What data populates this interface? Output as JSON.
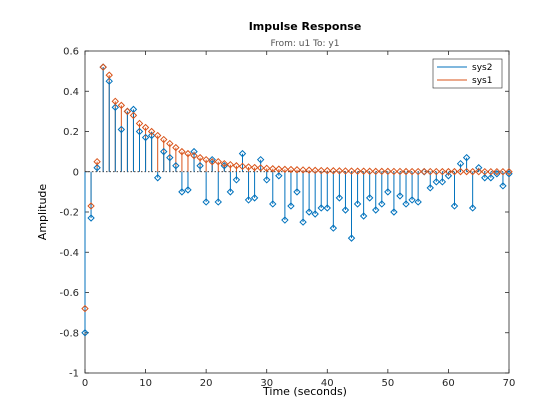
{
  "chart_data": {
    "type": "stem",
    "title": "Impulse Response",
    "subtitle": "From: u1  To: y1",
    "xlabel": "Time (seconds)",
    "ylabel": "Amplitude",
    "xlim": [
      0,
      70
    ],
    "ylim": [
      -1,
      0.6
    ],
    "xticks": [
      "0",
      "10",
      "20",
      "30",
      "40",
      "50",
      "60",
      "70"
    ],
    "yticks": [
      "0.6",
      "0.4",
      "0.2",
      "0",
      "-0.2",
      "-0.4",
      "-0.6",
      "-0.8",
      "-1"
    ],
    "legend_position": "top-right",
    "series": [
      {
        "name": "sys2",
        "color": "#0072BD",
        "marker": "diamond",
        "x": [
          0,
          1,
          2,
          3,
          4,
          5,
          6,
          7,
          8,
          9,
          10,
          11,
          12,
          13,
          14,
          15,
          16,
          17,
          18,
          19,
          20,
          21,
          22,
          23,
          24,
          25,
          26,
          27,
          28,
          29,
          30,
          31,
          32,
          33,
          34,
          35,
          36,
          37,
          38,
          39,
          40,
          41,
          42,
          43,
          44,
          45,
          46,
          47,
          48,
          49,
          50,
          51,
          52,
          53,
          54,
          55,
          56,
          57,
          58,
          59,
          60,
          61,
          62,
          63,
          64,
          65,
          66,
          67,
          68,
          69,
          70
        ],
        "y": [
          -0.8,
          -0.23,
          0.02,
          0.52,
          0.45,
          0.32,
          0.21,
          0.3,
          0.31,
          0.2,
          0.17,
          0.18,
          -0.03,
          0.1,
          0.07,
          0.03,
          -0.1,
          -0.09,
          0.1,
          0.03,
          -0.15,
          0.06,
          -0.15,
          0.03,
          -0.1,
          -0.04,
          0.09,
          -0.14,
          -0.13,
          0.06,
          -0.04,
          -0.16,
          -0.02,
          -0.24,
          -0.17,
          -0.1,
          -0.25,
          -0.2,
          -0.21,
          -0.18,
          -0.18,
          -0.28,
          -0.13,
          -0.19,
          -0.33,
          -0.16,
          -0.22,
          -0.13,
          -0.19,
          -0.16,
          -0.1,
          -0.2,
          -0.12,
          -0.16,
          -0.14,
          -0.15,
          0.0,
          -0.08,
          -0.05,
          -0.05,
          -0.02,
          -0.17,
          0.04,
          0.07,
          -0.18,
          0.02,
          -0.03,
          -0.03,
          -0.01,
          -0.07,
          -0.01
        ]
      },
      {
        "name": "sys1",
        "color": "#D95319",
        "marker": "diamond",
        "x": [
          0,
          1,
          2,
          3,
          4,
          5,
          6,
          7,
          8,
          9,
          10,
          11,
          12,
          13,
          14,
          15,
          16,
          17,
          18,
          19,
          20,
          21,
          22,
          23,
          24,
          25,
          26,
          27,
          28,
          29,
          30,
          31,
          32,
          33,
          34,
          35,
          36,
          37,
          38,
          39,
          40,
          41,
          42,
          43,
          44,
          45,
          46,
          47,
          48,
          49,
          50,
          51,
          52,
          53,
          54,
          55,
          56,
          57,
          58,
          59,
          60,
          61,
          62,
          63,
          64,
          65,
          66,
          67,
          68,
          69,
          70
        ],
        "y": [
          -0.68,
          -0.17,
          0.05,
          0.52,
          0.48,
          0.35,
          0.33,
          0.3,
          0.28,
          0.24,
          0.22,
          0.2,
          0.18,
          0.16,
          0.14,
          0.12,
          0.1,
          0.09,
          0.08,
          0.07,
          0.06,
          0.05,
          0.05,
          0.04,
          0.035,
          0.03,
          0.027,
          0.024,
          0.021,
          0.019,
          0.017,
          0.015,
          0.013,
          0.012,
          0.011,
          0.01,
          0.009,
          0.008,
          0.007,
          0.006,
          0.0055,
          0.005,
          0.0045,
          0.004,
          0.0035,
          0.003,
          0.003,
          0.0025,
          0.002,
          0.002,
          0.002,
          0.0015,
          0.0015,
          0.0012,
          0.001,
          0.001,
          0.001,
          0.001,
          0.001,
          0.0008,
          0.0008,
          0.0006,
          0.0006,
          0.0005,
          0.0005,
          0.0004,
          0.0004,
          0.0003,
          0.0003,
          0.0003,
          0.0002
        ]
      }
    ]
  }
}
